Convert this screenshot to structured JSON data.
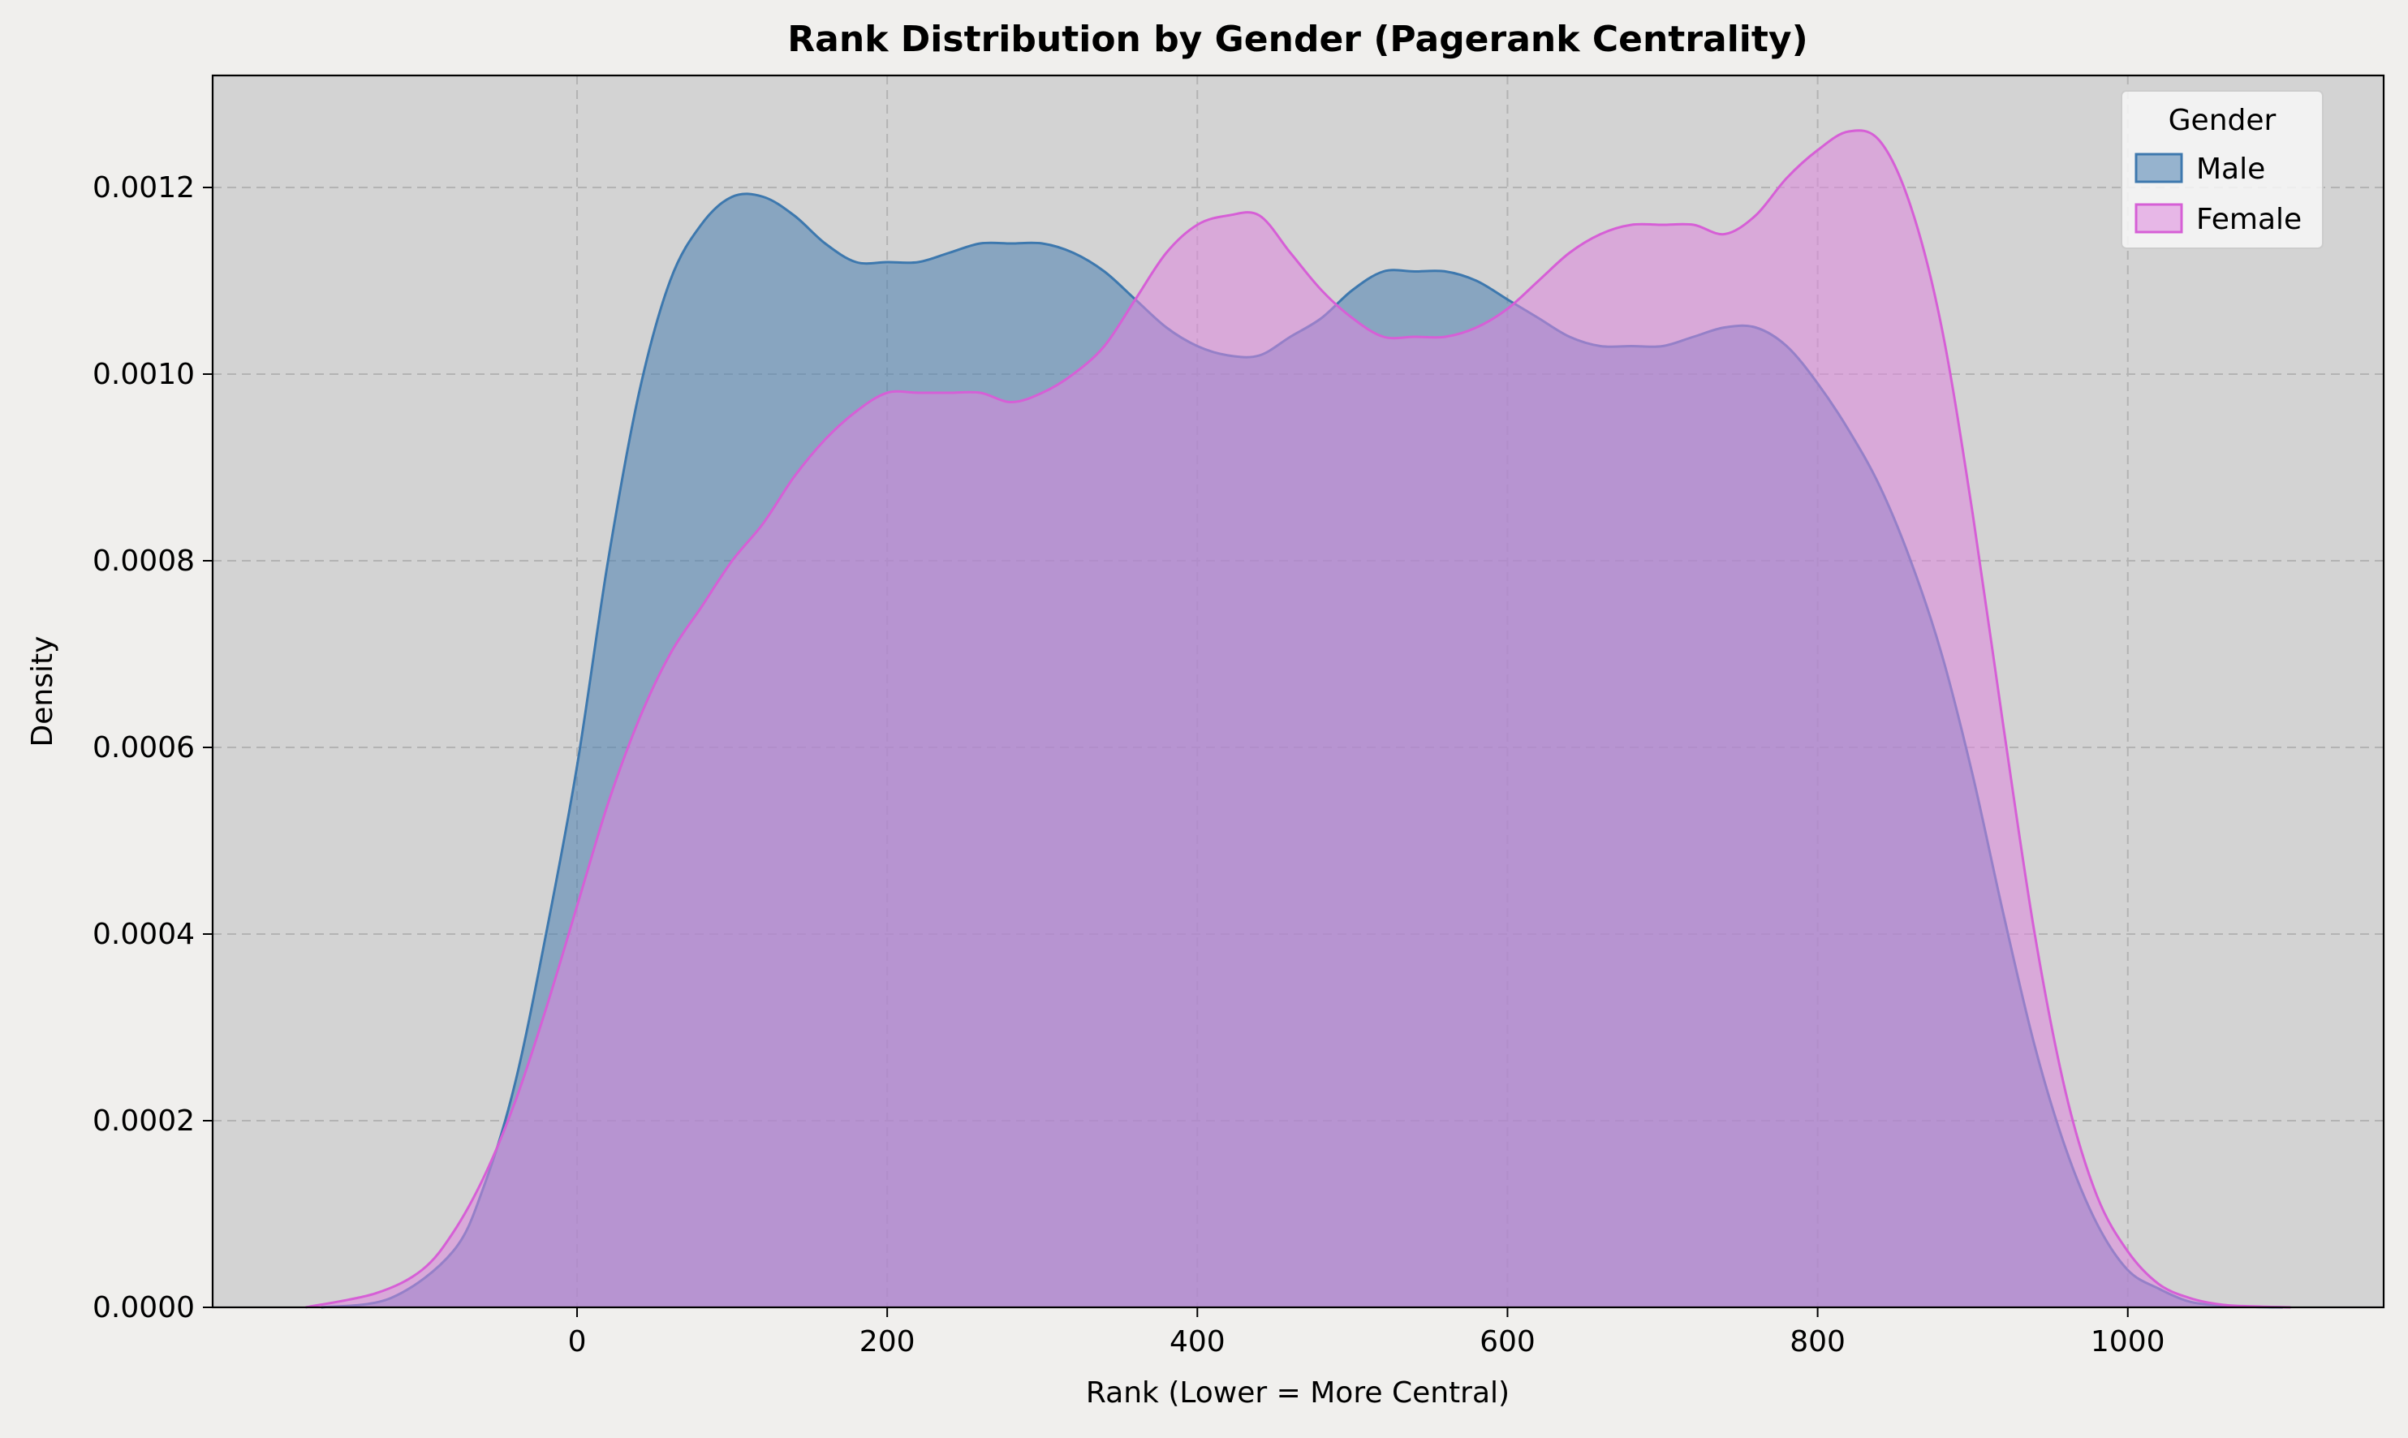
{
  "chart_data": {
    "type": "area",
    "title": "Rank Distribution by Gender (Pagerank Centrality)",
    "xlabel": "Rank (Lower = More Central)",
    "ylabel": "Density",
    "xlim": [
      -235,
      1165
    ],
    "ylim": [
      0,
      0.00132
    ],
    "xticks": [
      0,
      200,
      400,
      600,
      800,
      1000
    ],
    "xtick_labels": [
      "0",
      "200",
      "400",
      "600",
      "800",
      "1000"
    ],
    "yticks": [
      0,
      0.0002,
      0.0004,
      0.0006,
      0.0008,
      0.001,
      0.0012
    ],
    "ytick_labels": [
      "0.0000",
      "0.0002",
      "0.0004",
      "0.0006",
      "0.0008",
      "0.0010",
      "0.0012"
    ],
    "grid": true,
    "background": "#d3d3d3",
    "legend": {
      "title": "Gender",
      "position": "top-right"
    },
    "series": [
      {
        "name": "Male",
        "color": "#3d78ae",
        "fill": "#4a7fb0",
        "x": [
          -165,
          -120,
          -80,
          -60,
          -40,
          -20,
          0,
          20,
          40,
          60,
          80,
          100,
          120,
          140,
          160,
          180,
          200,
          220,
          240,
          260,
          280,
          300,
          320,
          340,
          360,
          380,
          400,
          420,
          440,
          460,
          480,
          500,
          520,
          540,
          560,
          580,
          600,
          620,
          640,
          660,
          680,
          700,
          720,
          740,
          760,
          780,
          800,
          820,
          840,
          860,
          880,
          900,
          920,
          940,
          960,
          980,
          1000,
          1020,
          1040,
          1060,
          1080,
          1100
        ],
        "y": [
          0,
          1e-05,
          6e-05,
          0.00013,
          0.00024,
          0.0004,
          0.00058,
          0.0008,
          0.00098,
          0.0011,
          0.00116,
          0.00119,
          0.00119,
          0.00117,
          0.00114,
          0.00112,
          0.00112,
          0.00112,
          0.00113,
          0.00114,
          0.00114,
          0.00114,
          0.00113,
          0.00111,
          0.00108,
          0.00105,
          0.00103,
          0.00102,
          0.00102,
          0.00104,
          0.00106,
          0.00109,
          0.00111,
          0.00111,
          0.00111,
          0.0011,
          0.00108,
          0.00106,
          0.00104,
          0.00103,
          0.00103,
          0.00103,
          0.00104,
          0.00105,
          0.00105,
          0.00103,
          0.00099,
          0.00094,
          0.00088,
          0.0008,
          0.0007,
          0.00057,
          0.00042,
          0.00028,
          0.00017,
          9e-05,
          4e-05,
          2e-05,
          6e-06,
          2e-06,
          5e-07,
          0
        ]
      },
      {
        "name": "Female",
        "color": "#d65fd6",
        "fill": "#de86de",
        "x": [
          -175,
          -130,
          -100,
          -80,
          -60,
          -40,
          -20,
          0,
          20,
          40,
          60,
          80,
          100,
          120,
          140,
          160,
          180,
          200,
          220,
          240,
          260,
          280,
          300,
          320,
          340,
          360,
          380,
          400,
          420,
          440,
          460,
          480,
          500,
          520,
          540,
          560,
          580,
          600,
          620,
          640,
          660,
          680,
          700,
          720,
          740,
          760,
          780,
          800,
          820,
          840,
          860,
          880,
          900,
          920,
          940,
          960,
          980,
          1000,
          1020,
          1040,
          1060,
          1080,
          1105
        ],
        "y": [
          0,
          1.5e-05,
          4e-05,
          8e-05,
          0.00014,
          0.00022,
          0.00032,
          0.00043,
          0.00054,
          0.00063,
          0.0007,
          0.00075,
          0.0008,
          0.00084,
          0.00089,
          0.00093,
          0.00096,
          0.00098,
          0.00098,
          0.00098,
          0.00098,
          0.00097,
          0.00098,
          0.001,
          0.00103,
          0.00108,
          0.00113,
          0.00116,
          0.00117,
          0.00117,
          0.00113,
          0.00109,
          0.00106,
          0.00104,
          0.00104,
          0.00104,
          0.00105,
          0.00107,
          0.0011,
          0.00113,
          0.00115,
          0.00116,
          0.00116,
          0.00116,
          0.00115,
          0.00117,
          0.00121,
          0.00124,
          0.00126,
          0.00125,
          0.00118,
          0.00105,
          0.00085,
          0.00062,
          0.0004,
          0.00023,
          0.00012,
          6e-05,
          2.5e-05,
          1e-05,
          3e-06,
          1e-06,
          0
        ]
      }
    ]
  }
}
